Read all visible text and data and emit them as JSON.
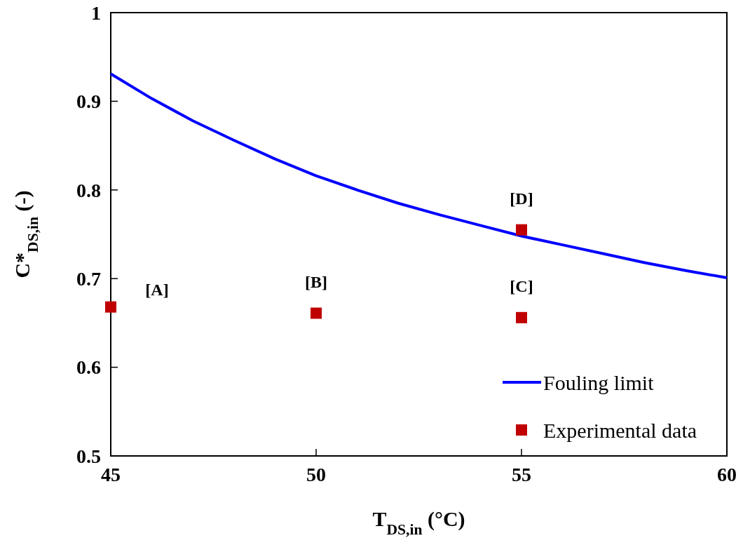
{
  "chart_data": {
    "type": "line",
    "xlabel": "T$_{DS,in}$ (°C)",
    "ylabel": "C*$_{DS,in}$ (-)",
    "xlim": [
      45,
      60
    ],
    "xticks": [
      45,
      50,
      55,
      60
    ],
    "ylim": [
      0.5,
      1
    ],
    "yticks": [
      0.5,
      0.6,
      0.7,
      0.8,
      0.9,
      1
    ],
    "grid": false,
    "legend": "bottom right",
    "series": [
      {
        "name": "Fouling limit",
        "color": "#0000ff",
        "marker": "none",
        "line_style": "solid",
        "x": [
          45,
          46,
          47,
          48,
          49,
          50,
          51,
          52,
          53,
          54,
          55,
          56,
          57,
          58,
          59,
          60
        ],
        "values": [
          0.931,
          0.903,
          0.878,
          0.856,
          0.835,
          0.816,
          0.8,
          0.785,
          0.772,
          0.76,
          0.748,
          0.738,
          0.728,
          0.718,
          0.709,
          0.701
        ]
      },
      {
        "name": "Experimental data",
        "color": "#c00000",
        "type": "scatter",
        "marker": "square",
        "x": [
          45,
          50,
          55,
          55
        ],
        "values": [
          0.668,
          0.661,
          0.656,
          0.755
        ]
      }
    ],
    "annotations": [
      {
        "text": "[A]",
        "x": 45,
        "y": 0.668
      },
      {
        "text": "[B]",
        "x": 50,
        "y": 0.661
      },
      {
        "text": "[C]",
        "x": 55,
        "y": 0.656
      },
      {
        "text": "[D]",
        "x": 55,
        "y": 0.755
      }
    ]
  }
}
